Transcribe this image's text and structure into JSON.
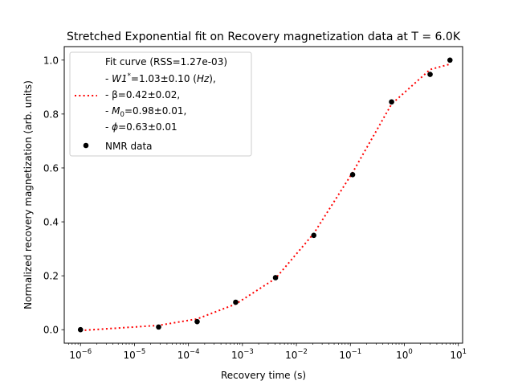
{
  "chart_data": {
    "type": "scatter",
    "title": "Stretched Exponential fit on Recovery magnetization data at T = 6.0K",
    "xlabel": "Recovery time (s)",
    "ylabel": "Normalized recovery magnetization (arb. units)",
    "xscale": "log",
    "xlim": [
      5e-07,
      12
    ],
    "ylim": [
      -0.05,
      1.05
    ],
    "x_ticks": [
      {
        "value": 1e-06,
        "base": "10",
        "exp": "−6"
      },
      {
        "value": 1e-05,
        "base": "10",
        "exp": "−5"
      },
      {
        "value": 0.0001,
        "base": "10",
        "exp": "−4"
      },
      {
        "value": 0.001,
        "base": "10",
        "exp": "−3"
      },
      {
        "value": 0.01,
        "base": "10",
        "exp": "−2"
      },
      {
        "value": 0.1,
        "base": "10",
        "exp": "−1"
      },
      {
        "value": 1,
        "base": "10",
        "exp": "0"
      },
      {
        "value": 10,
        "base": "10",
        "exp": "1"
      }
    ],
    "y_ticks": [
      {
        "value": 0.0,
        "label": "0.0"
      },
      {
        "value": 0.2,
        "label": "0.2"
      },
      {
        "value": 0.4,
        "label": "0.4"
      },
      {
        "value": 0.6,
        "label": "0.6"
      },
      {
        "value": 0.8,
        "label": "0.8"
      },
      {
        "value": 1.0,
        "label": "1.0"
      }
    ],
    "grid": false,
    "legend_position": "upper-left",
    "series": [
      {
        "name": "Fit curve (RSS=1.27e-03)",
        "kind": "line",
        "style": "dotted",
        "color": "#ff0000",
        "x": [
          1e-06,
          2.8e-05,
          0.000145,
          0.00075,
          0.0041,
          0.021,
          0.11,
          0.58,
          3.0,
          7.0
        ],
        "y": [
          -0.003,
          0.016,
          0.04,
          0.095,
          0.19,
          0.357,
          0.583,
          0.837,
          0.965,
          0.985
        ]
      },
      {
        "name": "NMR data",
        "kind": "scatter",
        "color": "#000000",
        "x": [
          1e-06,
          2.8e-05,
          0.000145,
          0.00075,
          0.0041,
          0.021,
          0.11,
          0.58,
          3.0,
          7.0
        ],
        "y": [
          0.0,
          0.01,
          0.03,
          0.102,
          0.193,
          0.35,
          0.575,
          0.845,
          0.947,
          1.0
        ]
      }
    ],
    "legend": {
      "fit_lines": [
        {
          "segments": [
            {
              "t": "Fit curve (RSS=1.27e-03)"
            }
          ]
        },
        {
          "segments": [
            {
              "t": "- "
            },
            {
              "t": "W1",
              "italic": true
            },
            {
              "t": "*",
              "sup": true
            },
            {
              "t": "=1.03±0.10 ("
            },
            {
              "t": "Hz",
              "italic": true
            },
            {
              "t": "),"
            }
          ]
        },
        {
          "segments": [
            {
              "t": "- β=0.42±0.02,"
            }
          ]
        },
        {
          "segments": [
            {
              "t": "- "
            },
            {
              "t": "M",
              "italic": true
            },
            {
              "t": "0",
              "sub": true
            },
            {
              "t": "=0.98±0.01,"
            }
          ]
        },
        {
          "segments": [
            {
              "t": "- "
            },
            {
              "t": "ϕ",
              "italic": true
            },
            {
              "t": "=0.63±0.01"
            }
          ]
        }
      ],
      "data_label": "NMR data"
    }
  }
}
